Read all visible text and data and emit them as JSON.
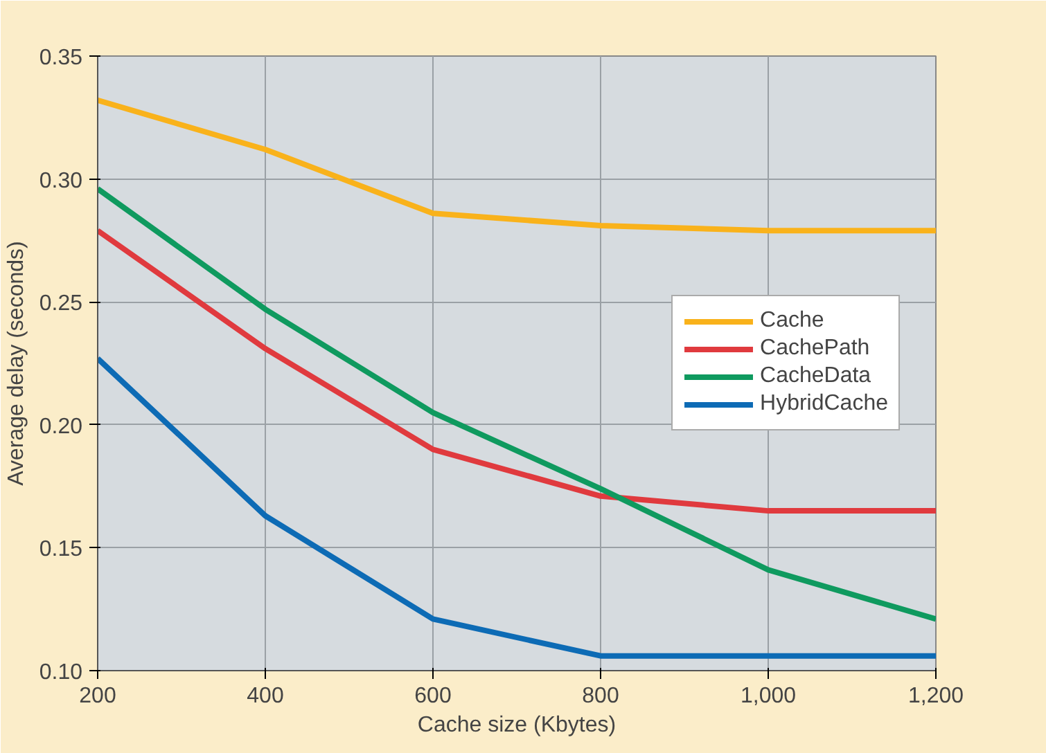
{
  "chart_data": {
    "type": "line",
    "xlabel": "Cache size (Kbytes)",
    "ylabel": "Average delay (seconds)",
    "x": [
      200,
      400,
      600,
      800,
      1000,
      1200
    ],
    "series": [
      {
        "name": "Cache",
        "color": "#f9b21b",
        "values": [
          0.332,
          0.312,
          0.286,
          0.281,
          0.279,
          0.279
        ]
      },
      {
        "name": "CachePath",
        "color": "#e03a3e",
        "values": [
          0.279,
          0.231,
          0.19,
          0.171,
          0.165,
          0.165
        ]
      },
      {
        "name": "CacheData",
        "color": "#0f9a5f",
        "values": [
          0.296,
          0.247,
          0.205,
          0.174,
          0.141,
          0.121
        ]
      },
      {
        "name": "HybridCache",
        "color": "#0d6bb5",
        "values": [
          0.227,
          0.163,
          0.121,
          0.106,
          0.106,
          0.106
        ]
      }
    ],
    "xlim": [
      200,
      1200
    ],
    "ylim": [
      0.1,
      0.35
    ],
    "xticks": [
      200,
      400,
      600,
      800,
      {
        "value": 1000,
        "label": "1,000"
      },
      {
        "value": 1200,
        "label": "1,200"
      }
    ],
    "yticks": [
      {
        "value": 0.1,
        "label": "0.10"
      },
      {
        "value": 0.15,
        "label": "0.15"
      },
      {
        "value": 0.2,
        "label": "0.20"
      },
      {
        "value": 0.25,
        "label": "0.25"
      },
      {
        "value": 0.3,
        "label": "0.30"
      },
      {
        "value": 0.35,
        "label": "0.35"
      }
    ],
    "grid": true,
    "legend": "right",
    "marker": "none",
    "line_style": "solid"
  }
}
